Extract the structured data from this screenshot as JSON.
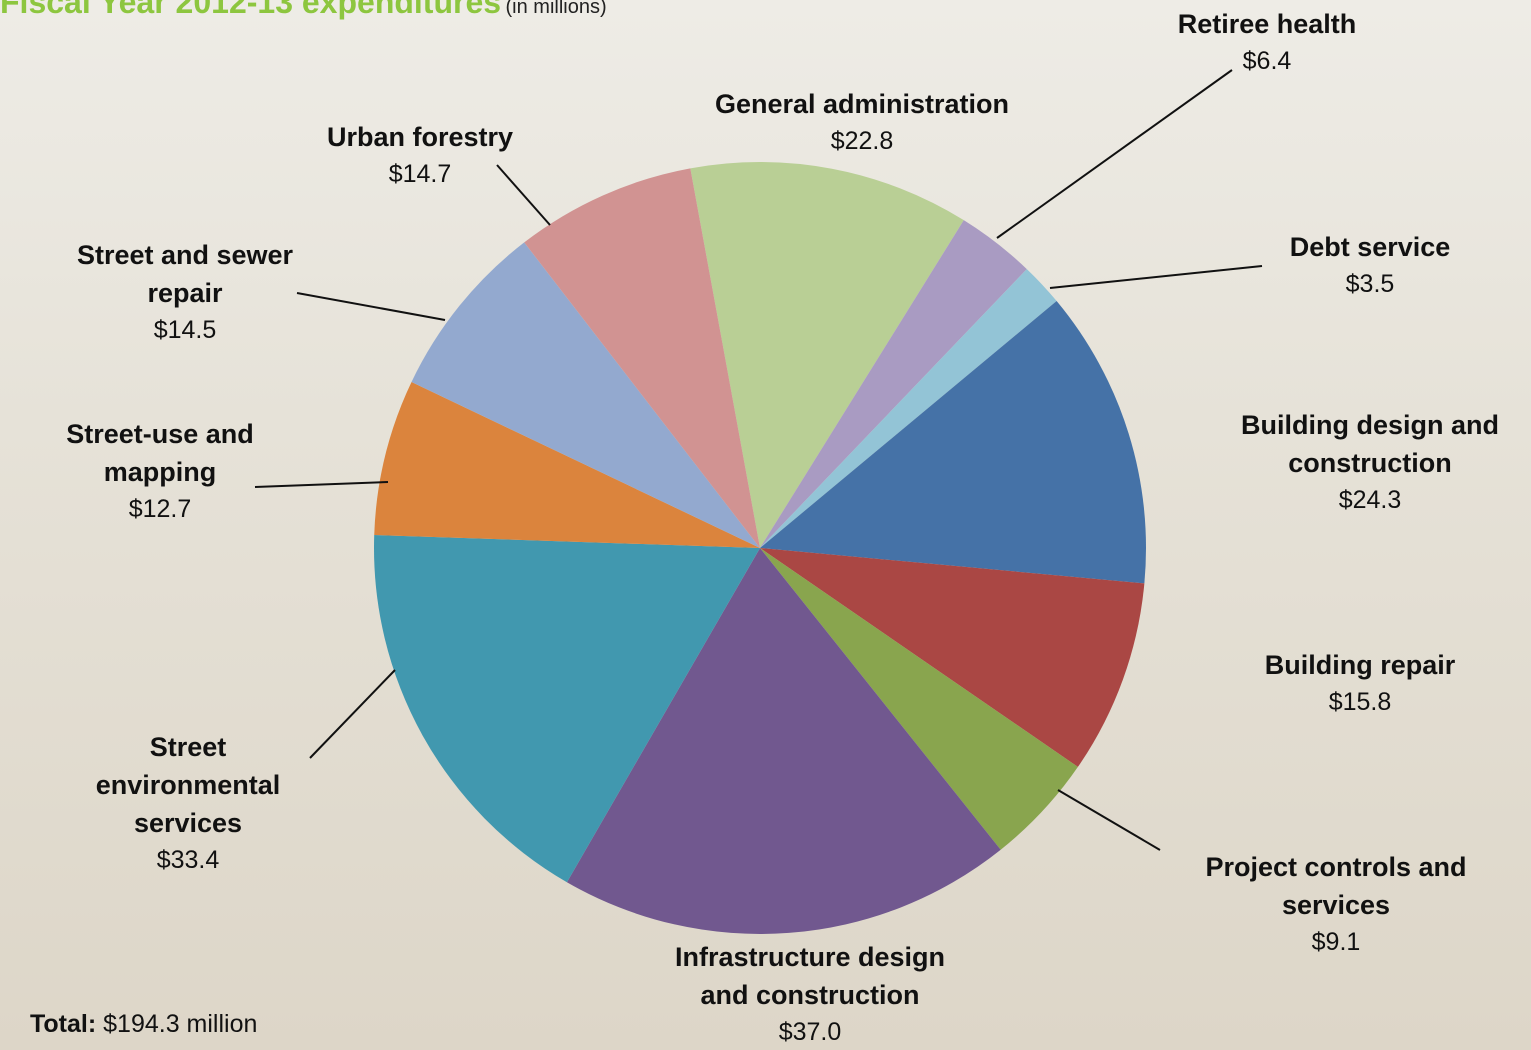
{
  "chart_data": {
    "type": "pie",
    "title": "Fiscal Year 2012-13 expenditures",
    "subtitle": "(in millions)",
    "categories": [
      "General administration",
      "Retiree health",
      "Debt service",
      "Building design and construction",
      "Building repair",
      "Project controls and services",
      "Infrastructure design and construction",
      "Street environmental services",
      "Street-use and mapping",
      "Street and sewer repair",
      "Urban forestry"
    ],
    "values": [
      22.8,
      6.4,
      3.5,
      24.3,
      15.8,
      9.1,
      37.0,
      33.4,
      12.7,
      14.5,
      14.7
    ],
    "value_labels": [
      "$22.8",
      "$6.4",
      "$3.5",
      "$24.3",
      "$15.8",
      "$9.1",
      "$37.0",
      "$33.4",
      "$12.7",
      "$14.5",
      "$14.7"
    ],
    "colors": [
      "#b9cf95",
      "#a99bc2",
      "#93c4d6",
      "#4572a7",
      "#aa4744",
      "#89a54e",
      "#71588f",
      "#4198af",
      "#db843d",
      "#93a9cf",
      "#d19392"
    ],
    "total_label": "Total:",
    "total_value_label": "$194.3 million"
  }
}
